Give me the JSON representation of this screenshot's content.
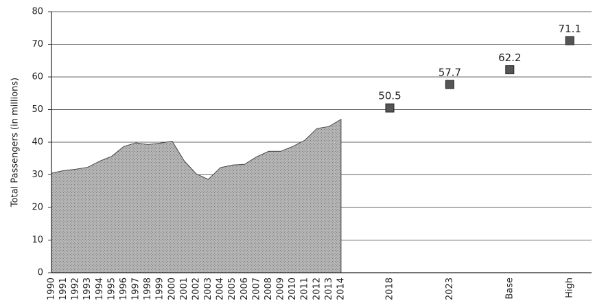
{
  "chart_data": {
    "type": "area",
    "y_label": "Total Passengers (in millions)",
    "categories": [
      "1990",
      "1991",
      "1992",
      "1993",
      "1994",
      "1995",
      "1996",
      "1997",
      "1998",
      "1999",
      "2000",
      "2001",
      "2002",
      "2003",
      "2004",
      "2005",
      "2006",
      "2007",
      "2008",
      "2009",
      "2010",
      "2011",
      "2012",
      "2013",
      "2014",
      "2018",
      "2023",
      "Base",
      "High"
    ],
    "series": [
      {
        "type": "area",
        "color": "#a9a9a9",
        "values": [
          30.5,
          31.3,
          31.7,
          32.3,
          34.2,
          35.7,
          38.7,
          39.8,
          39.3,
          39.7,
          40.3,
          34.3,
          30.3,
          28.6,
          32.2,
          33.0,
          33.2,
          35.5,
          37.2,
          37.2,
          38.7,
          40.6,
          44.2,
          44.8,
          47.0,
          null,
          null,
          null,
          null
        ]
      },
      {
        "type": "scatter",
        "color": "#555555",
        "values": [
          null,
          null,
          null,
          null,
          null,
          null,
          null,
          null,
          null,
          null,
          null,
          null,
          null,
          null,
          null,
          null,
          null,
          null,
          null,
          null,
          null,
          null,
          null,
          null,
          null,
          50.5,
          57.7,
          62.2,
          71.1
        ]
      }
    ],
    "ylim": [
      0,
      80
    ],
    "yticks": [
      0,
      10,
      20,
      30,
      40,
      50,
      60,
      70,
      80
    ],
    "grid": true
  }
}
